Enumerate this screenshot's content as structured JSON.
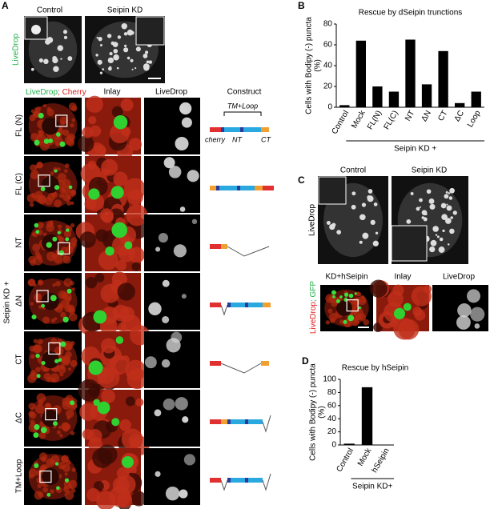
{
  "panel_a": {
    "label": "A",
    "top_labels": [
      "Control",
      "Seipin KD"
    ],
    "top_ylabel": "LiveDrop",
    "stain_label": [
      "LiveDrop",
      "; Cherry"
    ],
    "column_headers": [
      "Inlay",
      "LiveDrop",
      "Construct"
    ],
    "row_labels": [
      "FL (N)",
      "FL (C)",
      "NT",
      "ΔN",
      "CT",
      "ΔC",
      "TM+Loop"
    ],
    "group_label": "Seipin KD +",
    "construct_annotations": {
      "top": "TM+Loop",
      "cherry": "cherry",
      "nt": "NT",
      "ct": "CT"
    }
  },
  "panel_c": {
    "label": "C",
    "top_labels": [
      "Control",
      "Seipin KD"
    ],
    "top_ylabel": "LiveDrop",
    "stain_label": [
      "LiveDrop",
      "; GFP"
    ],
    "column_headers": [
      "KD+hSeipin",
      "Inlay",
      "LiveDrop"
    ]
  },
  "chart_data": [
    {
      "type": "bar",
      "panel_label": "B",
      "title": "Rescue by dSeipin trunctions",
      "ylabel": [
        "Cells with Bodipy (-) puncta",
        "(%)"
      ],
      "categories": [
        "Control",
        "Mock",
        "FL(N)",
        "FL(C)",
        "NT",
        "ΔN",
        "CT",
        "ΔC",
        "Loop"
      ],
      "values": [
        2,
        64,
        20,
        15,
        65,
        22,
        54,
        4,
        15
      ],
      "color": "#000000",
      "ylim": [
        0,
        80
      ],
      "yticks": [
        0,
        20,
        40,
        60,
        80
      ],
      "grid": false,
      "group_label": "Seipin KD +"
    },
    {
      "type": "bar",
      "panel_label": "D",
      "title": "Rescue by hSeipin",
      "ylabel": [
        "Cells with Bodipy (-) puncta",
        "(%)"
      ],
      "categories": [
        "Control",
        "Mock",
        "hSeipin"
      ],
      "values": [
        2,
        88,
        0
      ],
      "color": "#000000",
      "ylim": [
        0,
        100
      ],
      "yticks": [
        0,
        20,
        40,
        60,
        80,
        100
      ],
      "grid": false,
      "group_label": "Seipin KD+"
    }
  ]
}
